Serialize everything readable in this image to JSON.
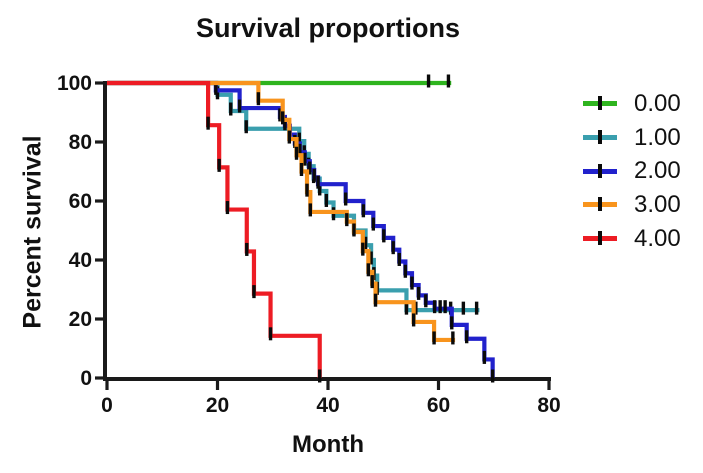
{
  "chart_data": {
    "type": "line",
    "subtype": "kaplan-meier-step",
    "title": "Survival proportions",
    "xlabel": "Month",
    "ylabel": "Percent survival",
    "xlim": [
      0,
      80
    ],
    "ylim": [
      0,
      100
    ],
    "x_ticks": [
      0,
      20,
      40,
      60,
      80
    ],
    "y_ticks": [
      0,
      20,
      40,
      60,
      80,
      100
    ],
    "grid": false,
    "legend_position": "right",
    "axis_color": "#1a1a1a",
    "event_tick_color": "#0a0a0a",
    "series": [
      {
        "name": "0.00",
        "color": "#2eb41e",
        "steps": [
          [
            0,
            100
          ]
        ],
        "end": 62.3,
        "censor_ticks": [
          [
            58.2,
            100
          ],
          [
            61.8,
            100
          ]
        ]
      },
      {
        "name": "1.00",
        "color": "#3a9fae",
        "steps": [
          [
            0,
            100
          ],
          [
            20,
            96
          ],
          [
            22.4,
            90.5
          ],
          [
            25.2,
            84.5
          ],
          [
            34.8,
            80.3
          ],
          [
            35.7,
            76
          ],
          [
            36.5,
            71.8
          ],
          [
            37.4,
            67.6
          ],
          [
            38.5,
            63.4
          ],
          [
            39.7,
            59.5
          ],
          [
            41,
            55
          ],
          [
            44.7,
            50
          ],
          [
            46.8,
            45
          ],
          [
            47.8,
            40
          ],
          [
            48.3,
            34.7
          ],
          [
            48.9,
            29.7
          ],
          [
            54.2,
            23
          ]
        ],
        "end": 67.4,
        "censor_ticks": [
          [
            55.9,
            23
          ],
          [
            62.2,
            23
          ],
          [
            64.5,
            23
          ],
          [
            66.9,
            23
          ]
        ]
      },
      {
        "name": "2.00",
        "color": "#2121cc",
        "steps": [
          [
            0,
            100
          ],
          [
            19.7,
            97.5
          ],
          [
            24,
            91.5
          ],
          [
            31.3,
            88.5
          ],
          [
            32.2,
            85.5
          ],
          [
            33.1,
            82.5
          ],
          [
            34,
            79.5
          ],
          [
            34.9,
            76.5
          ],
          [
            35.8,
            73.5
          ],
          [
            36.7,
            70.5
          ],
          [
            37.5,
            68
          ],
          [
            38.2,
            65.7
          ],
          [
            43.2,
            60
          ],
          [
            46.4,
            56
          ],
          [
            48.2,
            51.5
          ],
          [
            50.1,
            47.5
          ],
          [
            51.8,
            43.5
          ],
          [
            52.9,
            39.5
          ],
          [
            54,
            35.5
          ],
          [
            55.2,
            31.5
          ],
          [
            56.4,
            28
          ],
          [
            57.7,
            25.5
          ],
          [
            59.3,
            23.5
          ],
          [
            62.4,
            18
          ],
          [
            65.1,
            13.3
          ],
          [
            68.3,
            6.3
          ],
          [
            69.8,
            0
          ]
        ],
        "end": 69.8,
        "censor_ticks": [
          [
            60.3,
            23.5
          ],
          [
            61.2,
            23.5
          ]
        ]
      },
      {
        "name": "3.00",
        "color": "#f8941d",
        "steps": [
          [
            0,
            100
          ],
          [
            27.4,
            94
          ],
          [
            31.8,
            87.5
          ],
          [
            33,
            81
          ],
          [
            34.3,
            75.5
          ],
          [
            35.2,
            70
          ],
          [
            36.2,
            63
          ],
          [
            36.8,
            56.3
          ],
          [
            43.4,
            53
          ],
          [
            44.7,
            49.5
          ],
          [
            46.3,
            43
          ],
          [
            47.3,
            36
          ],
          [
            48,
            32
          ],
          [
            48.6,
            25.7
          ],
          [
            55.5,
            19
          ],
          [
            59.2,
            12.9
          ]
        ],
        "end": 63,
        "censor_ticks": [
          [
            62.6,
            12.9
          ]
        ]
      },
      {
        "name": "4.00",
        "color": "#ed1c24",
        "steps": [
          [
            0,
            100
          ],
          [
            18.3,
            85.7
          ],
          [
            20.3,
            71.4
          ],
          [
            21.8,
            57.1
          ],
          [
            25.3,
            42.9
          ],
          [
            26.6,
            28.6
          ],
          [
            29.6,
            14.3
          ],
          [
            38.5,
            0
          ]
        ],
        "end": 38.5,
        "censor_ticks": []
      }
    ]
  }
}
